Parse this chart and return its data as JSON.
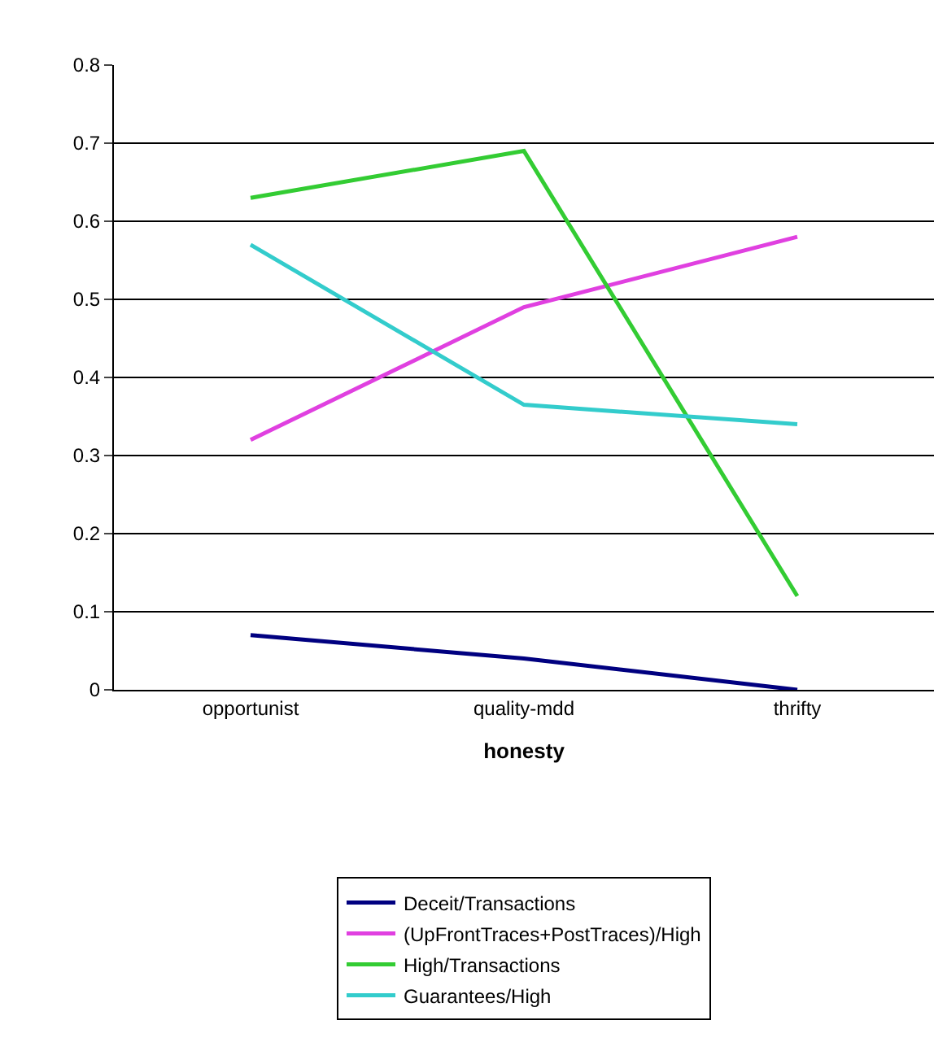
{
  "chart_data": {
    "type": "line",
    "xlabel": "honesty",
    "categories": [
      "opportunist",
      "quality-mdd",
      "thrifty"
    ],
    "series": [
      {
        "name": "Deceit/Transactions",
        "color": "#000080",
        "values": [
          0.07,
          0.04,
          0.0
        ]
      },
      {
        "name": "(UpFrontTraces+PostTraces)/High",
        "color": "#e040e0",
        "values": [
          0.32,
          0.49,
          0.58
        ]
      },
      {
        "name": "High/Transactions",
        "color": "#33cc33",
        "values": [
          0.63,
          0.69,
          0.12
        ]
      },
      {
        "name": "Guarantees/High",
        "color": "#33cccc",
        "values": [
          0.57,
          0.365,
          0.34
        ]
      }
    ],
    "ylim": [
      0,
      0.8
    ],
    "yticks": [
      0,
      0.1,
      0.2,
      0.3,
      0.4,
      0.5,
      0.6,
      0.7,
      0.8
    ],
    "grid": "y",
    "legend": "bottom",
    "marker": "none",
    "line_style": "solid"
  }
}
